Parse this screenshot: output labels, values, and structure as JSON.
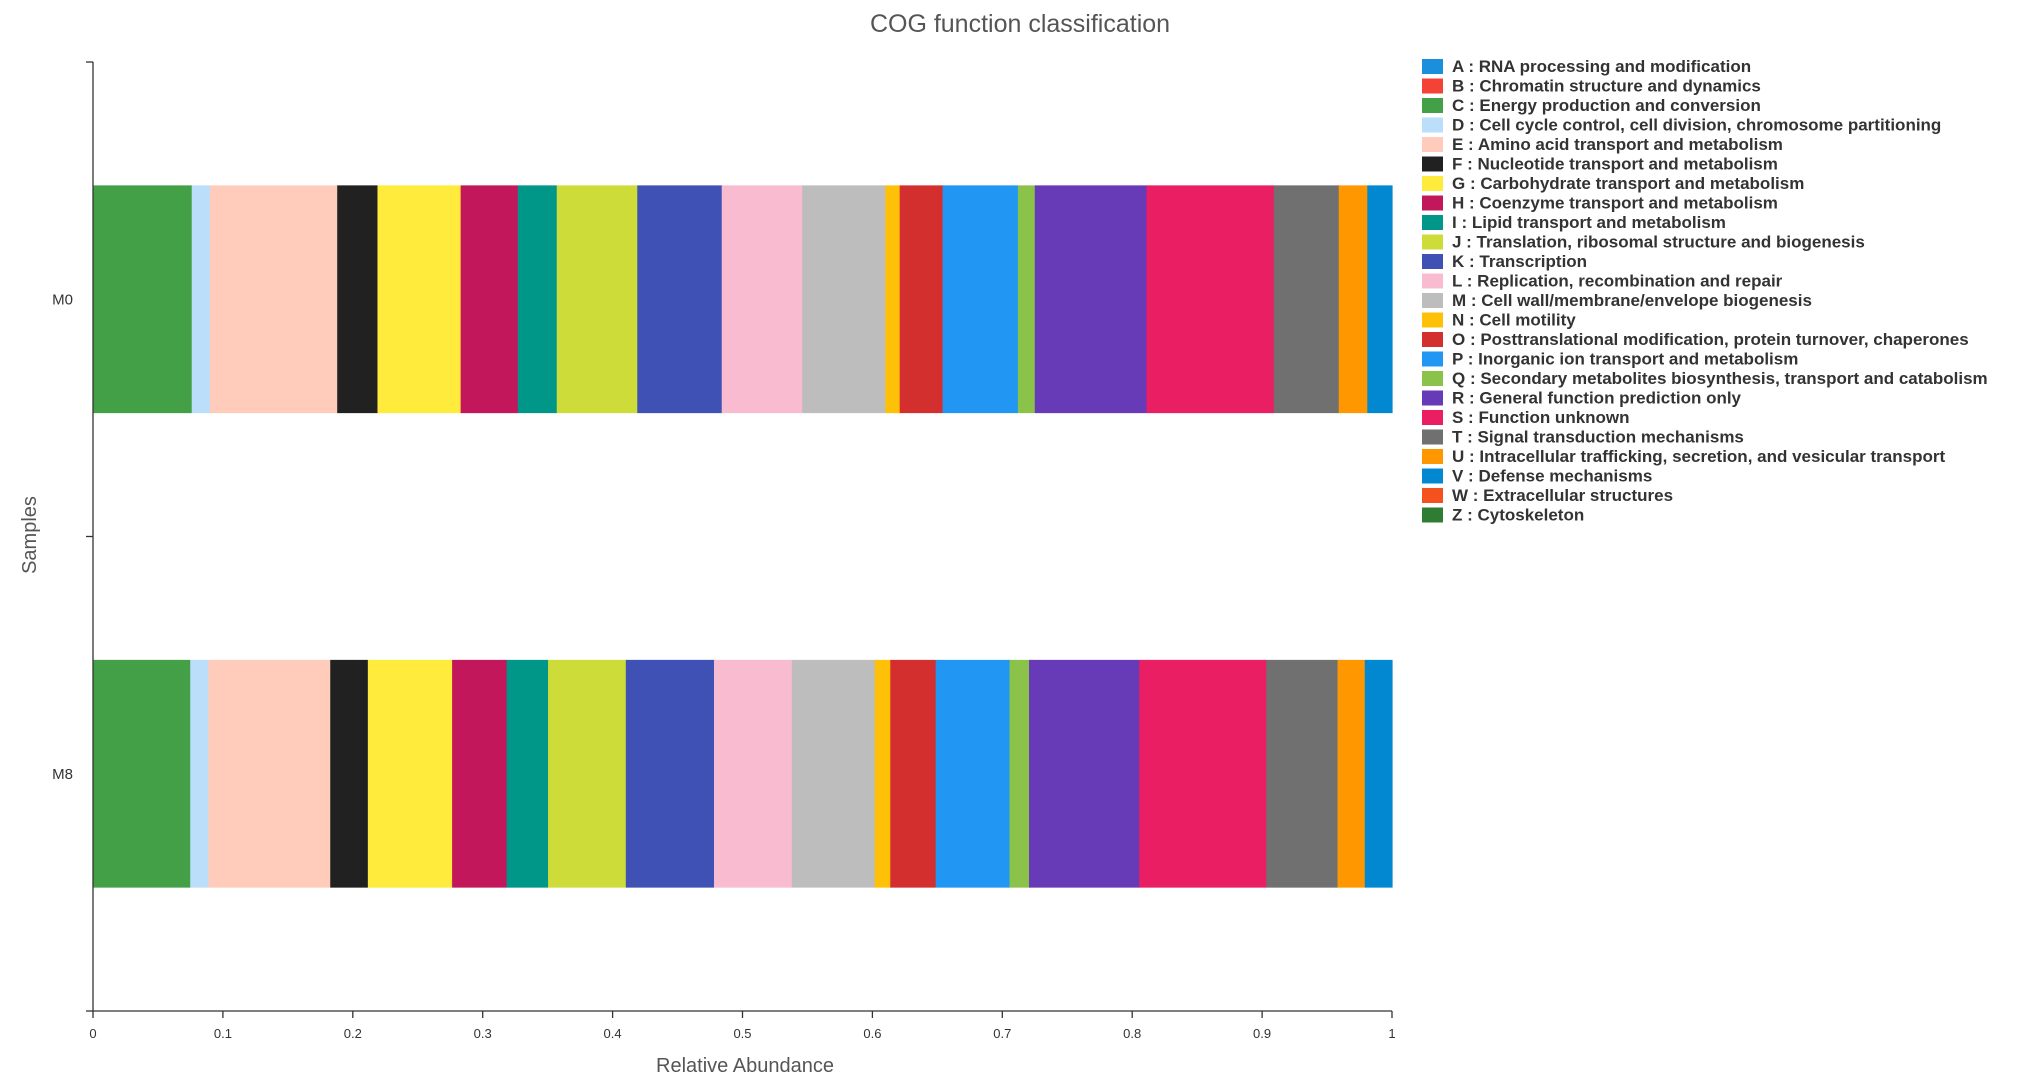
{
  "chart_data": {
    "type": "bar",
    "orientation": "horizontal",
    "stacked": true,
    "title": "COG function classification",
    "xlabel": "Relative Abundance",
    "ylabel": "Samples",
    "xlim": [
      0,
      1
    ],
    "xticks": [
      "0",
      "0.1",
      "0.2",
      "0.3",
      "0.4",
      "0.5",
      "0.6",
      "0.7",
      "0.8",
      "0.9",
      "1"
    ],
    "categories": [
      "M0",
      "M8"
    ],
    "legend_position": "right",
    "series": [
      {
        "key": "A",
        "name": "A : RNA processing and modification",
        "color": "#1a8fdc",
        "values": [
          0.0,
          0.0
        ]
      },
      {
        "key": "B",
        "name": "B : Chromatin structure and dynamics",
        "color": "#f44336",
        "values": [
          0.0,
          0.0
        ]
      },
      {
        "key": "C",
        "name": "C : Energy production and conversion",
        "color": "#43a047",
        "values": [
          0.076,
          0.075
        ]
      },
      {
        "key": "D",
        "name": "D : Cell cycle control, cell division, chromosome partitioning",
        "color": "#bbdefb",
        "values": [
          0.014,
          0.014
        ]
      },
      {
        "key": "E",
        "name": "E : Amino acid transport and metabolism",
        "color": "#ffccbc",
        "values": [
          0.098,
          0.094
        ]
      },
      {
        "key": "F",
        "name": "F : Nucleotide transport and metabolism",
        "color": "#212121",
        "values": [
          0.031,
          0.029
        ]
      },
      {
        "key": "G",
        "name": "G : Carbohydrate transport and metabolism",
        "color": "#ffeb3b",
        "values": [
          0.064,
          0.065
        ]
      },
      {
        "key": "H",
        "name": "H : Coenzyme transport and metabolism",
        "color": "#c2185b",
        "values": [
          0.044,
          0.042
        ]
      },
      {
        "key": "I",
        "name": "I : Lipid transport and metabolism",
        "color": "#009688",
        "values": [
          0.03,
          0.032
        ]
      },
      {
        "key": "J",
        "name": "J : Translation, ribosomal structure and biogenesis",
        "color": "#cddc39",
        "values": [
          0.062,
          0.06
        ]
      },
      {
        "key": "K",
        "name": "K : Transcription",
        "color": "#3f51b5",
        "values": [
          0.065,
          0.068
        ]
      },
      {
        "key": "L",
        "name": "L : Replication, recombination and repair",
        "color": "#f8bbd0",
        "values": [
          0.062,
          0.06
        ]
      },
      {
        "key": "M",
        "name": "M : Cell wall/membrane/envelope biogenesis",
        "color": "#bdbdbd",
        "values": [
          0.064,
          0.064
        ]
      },
      {
        "key": "N",
        "name": "N : Cell motility",
        "color": "#ffc107",
        "values": [
          0.011,
          0.012
        ]
      },
      {
        "key": "O",
        "name": "O : Posttranslational modification, protein turnover, chaperones",
        "color": "#d32f2f",
        "values": [
          0.033,
          0.035
        ]
      },
      {
        "key": "P",
        "name": "P : Inorganic ion transport and metabolism",
        "color": "#2196f3",
        "values": [
          0.058,
          0.057
        ]
      },
      {
        "key": "Q",
        "name": "Q : Secondary metabolites biosynthesis, transport and catabolism",
        "color": "#8bc34a",
        "values": [
          0.013,
          0.015
        ]
      },
      {
        "key": "R",
        "name": "R : General function prediction only",
        "color": "#673ab7",
        "values": [
          0.086,
          0.085
        ]
      },
      {
        "key": "S",
        "name": "S : Function unknown",
        "color": "#e91e63",
        "values": [
          0.098,
          0.098
        ]
      },
      {
        "key": "T",
        "name": "T : Signal transduction mechanisms",
        "color": "#707070",
        "values": [
          0.05,
          0.055
        ]
      },
      {
        "key": "U",
        "name": "U : Intracellular trafficking, secretion, and vesicular transport",
        "color": "#ff9800",
        "values": [
          0.022,
          0.021
        ]
      },
      {
        "key": "V",
        "name": "V : Defense mechanisms",
        "color": "#0288d1",
        "values": [
          0.019,
          0.021
        ]
      },
      {
        "key": "W",
        "name": "W : Extracellular structures",
        "color": "#f4511e",
        "values": [
          0.0,
          0.0
        ]
      },
      {
        "key": "Z",
        "name": "Z : Cytoskeleton",
        "color": "#2e7d32",
        "values": [
          0.0,
          0.0
        ]
      }
    ]
  }
}
